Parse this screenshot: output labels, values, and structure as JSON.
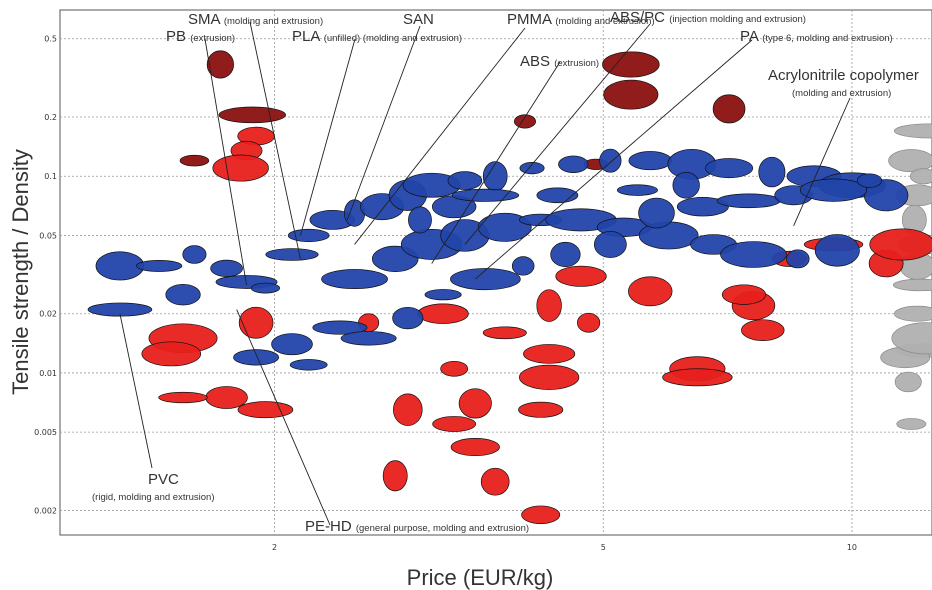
{
  "chart_data": {
    "type": "scatter",
    "title": "",
    "xlabel": "Price (EUR/kg)",
    "ylabel": "Tensile strength / Density",
    "xscale": "log",
    "yscale": "log",
    "xlim": [
      1.1,
      12.5
    ],
    "ylim": [
      0.0015,
      0.7
    ],
    "grid": true,
    "x_ticks": [
      {
        "value": 2,
        "label": "2"
      },
      {
        "value": 5,
        "label": "5"
      },
      {
        "value": 10,
        "label": "10"
      }
    ],
    "y_ticks": [
      {
        "value": 0.002,
        "label": "0.002"
      },
      {
        "value": 0.005,
        "label": "0.005"
      },
      {
        "value": 0.01,
        "label": "0.01"
      },
      {
        "value": 0.02,
        "label": "0.02"
      },
      {
        "value": 0.05,
        "label": "0.05"
      },
      {
        "value": 0.1,
        "label": "0.1"
      },
      {
        "value": 0.2,
        "label": "0.2"
      },
      {
        "value": 0.5,
        "label": "0.5"
      }
    ],
    "colors": {
      "blue": "#2244aa",
      "red": "#e8201c",
      "darkred": "#8b1010",
      "grey": "#b0b0b0",
      "highlight_text": "#1aa0b0"
    },
    "annotations": [
      {
        "id": "sma",
        "main": "SMA",
        "sub": "(molding and extrusion)",
        "x": 2.15,
        "y": 0.038,
        "color": "dark"
      },
      {
        "id": "pb",
        "main": "PB",
        "sub": "(extrusion)",
        "x": 1.85,
        "y": 0.028,
        "color": "dark"
      },
      {
        "id": "pla",
        "main": "PLA",
        "sub": "(unfilled)",
        "tail": "(molding and extrusion)",
        "x": 2.15,
        "y": 0.05,
        "color": "highlight"
      },
      {
        "id": "san",
        "main": "SAN",
        "sub": "",
        "x": 2.45,
        "y": 0.06,
        "color": "dark"
      },
      {
        "id": "pmma",
        "main": "PMMA",
        "sub": "(molding and extrusion)",
        "x": 2.5,
        "y": 0.045,
        "color": "dark"
      },
      {
        "id": "abs",
        "main": "ABS",
        "sub": "(extrusion)",
        "x": 3.1,
        "y": 0.036,
        "color": "highlight"
      },
      {
        "id": "abspc",
        "main": "ABS/PC",
        "sub": "(injection molding and extrusion)",
        "x": 3.4,
        "y": 0.045,
        "color": "dark"
      },
      {
        "id": "pa",
        "main": "PA",
        "sub": "(type 6, molding and extrusion)",
        "x": 3.5,
        "y": 0.03,
        "color": "dark"
      },
      {
        "id": "acry",
        "main": "Acrylonitrile copolymer",
        "sub": "(molding and extrusion)",
        "x": 8.5,
        "y": 0.056,
        "color": "dark"
      },
      {
        "id": "pvc",
        "main": "PVC",
        "sub": "(rigid, molding and extrusion)",
        "x": 1.3,
        "y": 0.02,
        "color": "dark"
      },
      {
        "id": "pehd",
        "main": "PE-HD",
        "sub": "(general purpose, molding and extrusion)",
        "x": 1.8,
        "y": 0.021,
        "color": "dark"
      }
    ],
    "series": [
      {
        "name": "",
        "color": "red",
        "points": [
          {
            "x": 1.75,
            "y": 0.0075
          },
          {
            "x": 1.95,
            "y": 0.0065
          },
          {
            "x": 2.9,
            "y": 0.0065
          },
          {
            "x": 3.3,
            "y": 0.0055
          },
          {
            "x": 3.5,
            "y": 0.0042
          },
          {
            "x": 3.7,
            "y": 0.0028
          },
          {
            "x": 4.2,
            "y": 0.0019
          },
          {
            "x": 2.8,
            "y": 0.003
          },
          {
            "x": 3.5,
            "y": 0.007
          },
          {
            "x": 4.2,
            "y": 0.0065
          },
          {
            "x": 4.3,
            "y": 0.0125
          },
          {
            "x": 4.3,
            "y": 0.0095
          },
          {
            "x": 3.3,
            "y": 0.0105
          },
          {
            "x": 3.8,
            "y": 0.016
          },
          {
            "x": 4.8,
            "y": 0.018
          },
          {
            "x": 6.5,
            "y": 0.0105
          },
          {
            "x": 6.5,
            "y": 0.0095
          },
          {
            "x": 7.8,
            "y": 0.0165
          },
          {
            "x": 7.6,
            "y": 0.022
          },
          {
            "x": 7.4,
            "y": 0.025
          },
          {
            "x": 8.4,
            "y": 0.038
          },
          {
            "x": 9.5,
            "y": 0.045
          },
          {
            "x": 11.0,
            "y": 0.036
          },
          {
            "x": 11.5,
            "y": 0.045
          },
          {
            "x": 1.55,
            "y": 0.015
          },
          {
            "x": 1.5,
            "y": 0.0125
          },
          {
            "x": 1.55,
            "y": 0.0075
          },
          {
            "x": 1.9,
            "y": 0.16
          },
          {
            "x": 1.85,
            "y": 0.135
          },
          {
            "x": 1.82,
            "y": 0.11
          },
          {
            "x": 1.9,
            "y": 0.018
          },
          {
            "x": 2.6,
            "y": 0.018
          },
          {
            "x": 3.2,
            "y": 0.02
          },
          {
            "x": 4.3,
            "y": 0.022
          },
          {
            "x": 5.7,
            "y": 0.026
          },
          {
            "x": 4.7,
            "y": 0.031
          }
        ]
      },
      {
        "name": "",
        "color": "darkred",
        "points": [
          {
            "x": 1.72,
            "y": 0.37
          },
          {
            "x": 1.88,
            "y": 0.205
          },
          {
            "x": 4.02,
            "y": 0.19
          },
          {
            "x": 5.4,
            "y": 0.37
          },
          {
            "x": 5.4,
            "y": 0.26
          },
          {
            "x": 7.1,
            "y": 0.22
          },
          {
            "x": 1.6,
            "y": 0.12
          },
          {
            "x": 4.9,
            "y": 0.115
          }
        ]
      },
      {
        "name": "",
        "color": "blue",
        "points": [
          {
            "x": 1.3,
            "y": 0.035
          },
          {
            "x": 1.3,
            "y": 0.021
          },
          {
            "x": 1.45,
            "y": 0.035
          },
          {
            "x": 1.55,
            "y": 0.025
          },
          {
            "x": 1.6,
            "y": 0.04
          },
          {
            "x": 1.75,
            "y": 0.034
          },
          {
            "x": 1.85,
            "y": 0.029
          },
          {
            "x": 1.95,
            "y": 0.027
          },
          {
            "x": 2.1,
            "y": 0.04
          },
          {
            "x": 2.2,
            "y": 0.05
          },
          {
            "x": 2.35,
            "y": 0.06
          },
          {
            "x": 2.5,
            "y": 0.065
          },
          {
            "x": 2.7,
            "y": 0.07
          },
          {
            "x": 2.9,
            "y": 0.08
          },
          {
            "x": 3.1,
            "y": 0.09
          },
          {
            "x": 3.4,
            "y": 0.095
          },
          {
            "x": 3.7,
            "y": 0.1
          },
          {
            "x": 4.1,
            "y": 0.11
          },
          {
            "x": 4.6,
            "y": 0.115
          },
          {
            "x": 5.1,
            "y": 0.12
          },
          {
            "x": 5.7,
            "y": 0.12
          },
          {
            "x": 6.4,
            "y": 0.115
          },
          {
            "x": 7.1,
            "y": 0.11
          },
          {
            "x": 8.0,
            "y": 0.105
          },
          {
            "x": 9.0,
            "y": 0.1
          },
          {
            "x": 10.0,
            "y": 0.09
          },
          {
            "x": 11.0,
            "y": 0.08
          },
          {
            "x": 2.5,
            "y": 0.03
          },
          {
            "x": 2.8,
            "y": 0.038
          },
          {
            "x": 3.1,
            "y": 0.045
          },
          {
            "x": 3.4,
            "y": 0.05
          },
          {
            "x": 3.8,
            "y": 0.055
          },
          {
            "x": 4.2,
            "y": 0.06
          },
          {
            "x": 4.7,
            "y": 0.06
          },
          {
            "x": 5.3,
            "y": 0.055
          },
          {
            "x": 6.0,
            "y": 0.05
          },
          {
            "x": 6.8,
            "y": 0.045
          },
          {
            "x": 7.6,
            "y": 0.04
          },
          {
            "x": 8.6,
            "y": 0.038
          },
          {
            "x": 9.6,
            "y": 0.042
          },
          {
            "x": 2.4,
            "y": 0.017
          },
          {
            "x": 2.6,
            "y": 0.015
          },
          {
            "x": 2.9,
            "y": 0.019
          },
          {
            "x": 3.2,
            "y": 0.025
          },
          {
            "x": 3.6,
            "y": 0.03
          },
          {
            "x": 4.0,
            "y": 0.035
          },
          {
            "x": 4.5,
            "y": 0.04
          },
          {
            "x": 5.1,
            "y": 0.045
          },
          {
            "x": 5.8,
            "y": 0.065
          },
          {
            "x": 6.6,
            "y": 0.07
          },
          {
            "x": 7.5,
            "y": 0.075
          },
          {
            "x": 8.5,
            "y": 0.08
          },
          {
            "x": 9.5,
            "y": 0.085
          },
          {
            "x": 10.5,
            "y": 0.095
          },
          {
            "x": 1.9,
            "y": 0.012
          },
          {
            "x": 2.1,
            "y": 0.014
          },
          {
            "x": 2.2,
            "y": 0.011
          },
          {
            "x": 3.0,
            "y": 0.06
          },
          {
            "x": 3.3,
            "y": 0.07
          },
          {
            "x": 3.6,
            "y": 0.08
          },
          {
            "x": 4.4,
            "y": 0.08
          },
          {
            "x": 5.5,
            "y": 0.085
          },
          {
            "x": 6.3,
            "y": 0.09
          }
        ]
      },
      {
        "name": "",
        "color": "grey",
        "points": [
          {
            "x": 11.8,
            "y": 0.12
          },
          {
            "x": 12.2,
            "y": 0.1
          },
          {
            "x": 12.0,
            "y": 0.08
          },
          {
            "x": 11.9,
            "y": 0.06
          },
          {
            "x": 12.2,
            "y": 0.045
          },
          {
            "x": 12.0,
            "y": 0.035
          },
          {
            "x": 12.1,
            "y": 0.028
          },
          {
            "x": 12.0,
            "y": 0.02
          },
          {
            "x": 12.2,
            "y": 0.013
          },
          {
            "x": 11.6,
            "y": 0.012
          },
          {
            "x": 11.8,
            "y": 0.0055
          },
          {
            "x": 12.3,
            "y": 0.015
          },
          {
            "x": 11.7,
            "y": 0.009
          },
          {
            "x": 12.4,
            "y": 0.17
          }
        ]
      }
    ]
  }
}
